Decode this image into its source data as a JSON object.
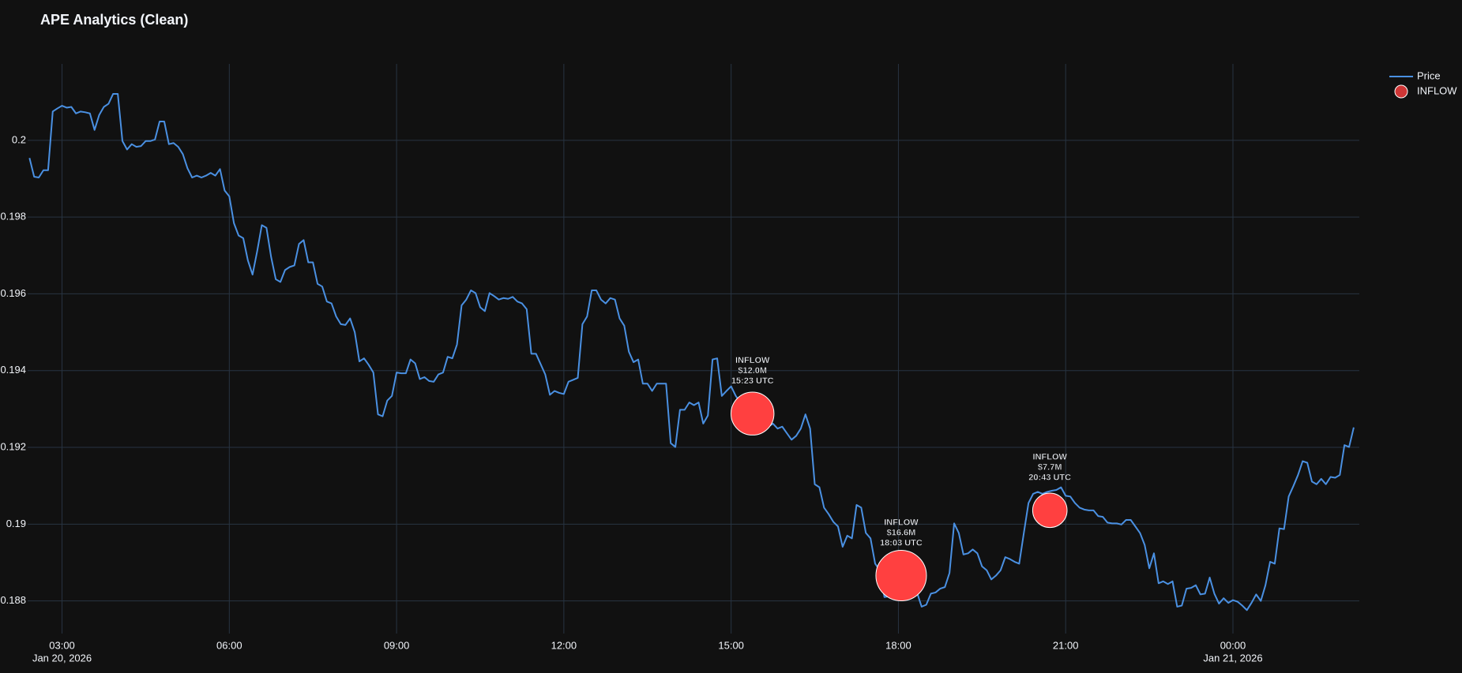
{
  "chart_data": {
    "type": "line",
    "title": "APE Analytics (Clean)",
    "xlim": [
      "2026-01-20 02:23",
      "2026-01-21 02:16"
    ],
    "ylim": [
      0.18715,
      0.20199
    ],
    "xticks": [
      {
        "value": "2026-01-20 03:00",
        "label": "03:00",
        "date_label": "Jan 20, 2026"
      },
      {
        "value": "2026-01-20 06:00",
        "label": "06:00"
      },
      {
        "value": "2026-01-20 09:00",
        "label": "09:00"
      },
      {
        "value": "2026-01-20 12:00",
        "label": "12:00"
      },
      {
        "value": "2026-01-20 15:00",
        "label": "15:00"
      },
      {
        "value": "2026-01-20 18:00",
        "label": "18:00"
      },
      {
        "value": "2026-01-20 21:00",
        "label": "21:00"
      },
      {
        "value": "2026-01-21 00:00",
        "label": "00:00",
        "date_label": "Jan 21, 2026"
      }
    ],
    "yticks": [
      0.188,
      0.19,
      0.192,
      0.194,
      0.196,
      0.198,
      0.2
    ],
    "grid": true,
    "legend": "top-right",
    "series": [
      {
        "name": "Price",
        "type": "line",
        "color": "#4a90e2",
        "x": [
          "2026-01-20 02:25",
          "2026-01-20 02:30",
          "2026-01-20 02:35",
          "2026-01-20 02:40",
          "2026-01-20 02:45",
          "2026-01-20 02:50",
          "2026-01-20 02:55",
          "2026-01-20 03:00",
          "2026-01-20 03:05",
          "2026-01-20 03:10",
          "2026-01-20 03:15",
          "2026-01-20 03:20",
          "2026-01-20 03:25",
          "2026-01-20 03:30",
          "2026-01-20 03:35",
          "2026-01-20 03:40",
          "2026-01-20 03:45",
          "2026-01-20 03:50",
          "2026-01-20 03:55",
          "2026-01-20 04:00",
          "2026-01-20 04:05",
          "2026-01-20 04:10",
          "2026-01-20 04:15",
          "2026-01-20 04:20",
          "2026-01-20 04:25",
          "2026-01-20 04:30",
          "2026-01-20 04:35",
          "2026-01-20 04:40",
          "2026-01-20 04:45",
          "2026-01-20 04:50",
          "2026-01-20 04:55",
          "2026-01-20 05:00",
          "2026-01-20 05:05",
          "2026-01-20 05:10",
          "2026-01-20 05:15",
          "2026-01-20 05:20",
          "2026-01-20 05:25",
          "2026-01-20 05:30",
          "2026-01-20 05:35",
          "2026-01-20 05:40",
          "2026-01-20 05:45",
          "2026-01-20 05:50",
          "2026-01-20 05:55",
          "2026-01-20 06:00",
          "2026-01-20 06:05",
          "2026-01-20 06:10",
          "2026-01-20 06:15",
          "2026-01-20 06:20",
          "2026-01-20 06:25",
          "2026-01-20 06:30",
          "2026-01-20 06:35",
          "2026-01-20 06:40",
          "2026-01-20 06:45",
          "2026-01-20 06:50",
          "2026-01-20 06:55",
          "2026-01-20 07:00",
          "2026-01-20 07:05",
          "2026-01-20 07:10",
          "2026-01-20 07:15",
          "2026-01-20 07:20",
          "2026-01-20 07:25",
          "2026-01-20 07:30",
          "2026-01-20 07:35",
          "2026-01-20 07:40",
          "2026-01-20 07:45",
          "2026-01-20 07:50",
          "2026-01-20 07:55",
          "2026-01-20 08:00",
          "2026-01-20 08:05",
          "2026-01-20 08:10",
          "2026-01-20 08:15",
          "2026-01-20 08:20",
          "2026-01-20 08:25",
          "2026-01-20 08:30",
          "2026-01-20 08:35",
          "2026-01-20 08:40",
          "2026-01-20 08:45",
          "2026-01-20 08:50",
          "2026-01-20 08:55",
          "2026-01-20 09:00",
          "2026-01-20 09:05",
          "2026-01-20 09:10",
          "2026-01-20 09:15",
          "2026-01-20 09:20",
          "2026-01-20 09:25",
          "2026-01-20 09:30",
          "2026-01-20 09:35",
          "2026-01-20 09:40",
          "2026-01-20 09:45",
          "2026-01-20 09:50",
          "2026-01-20 09:55",
          "2026-01-20 10:00",
          "2026-01-20 10:05",
          "2026-01-20 10:10",
          "2026-01-20 10:15",
          "2026-01-20 10:20",
          "2026-01-20 10:25",
          "2026-01-20 10:30",
          "2026-01-20 10:35",
          "2026-01-20 10:40",
          "2026-01-20 10:45",
          "2026-01-20 10:50",
          "2026-01-20 10:55",
          "2026-01-20 11:00",
          "2026-01-20 11:05",
          "2026-01-20 11:10",
          "2026-01-20 11:15",
          "2026-01-20 11:20",
          "2026-01-20 11:25",
          "2026-01-20 11:30",
          "2026-01-20 11:35",
          "2026-01-20 11:40",
          "2026-01-20 11:45",
          "2026-01-20 11:50",
          "2026-01-20 11:55",
          "2026-01-20 12:00",
          "2026-01-20 12:05",
          "2026-01-20 12:10",
          "2026-01-20 12:15",
          "2026-01-20 12:20",
          "2026-01-20 12:25",
          "2026-01-20 12:30",
          "2026-01-20 12:35",
          "2026-01-20 12:40",
          "2026-01-20 12:45",
          "2026-01-20 12:50",
          "2026-01-20 12:55",
          "2026-01-20 13:00",
          "2026-01-20 13:05",
          "2026-01-20 13:10",
          "2026-01-20 13:15",
          "2026-01-20 13:20",
          "2026-01-20 13:25",
          "2026-01-20 13:30",
          "2026-01-20 13:35",
          "2026-01-20 13:40",
          "2026-01-20 13:45",
          "2026-01-20 13:50",
          "2026-01-20 13:55",
          "2026-01-20 14:00",
          "2026-01-20 14:05",
          "2026-01-20 14:10",
          "2026-01-20 14:15",
          "2026-01-20 14:20",
          "2026-01-20 14:25",
          "2026-01-20 14:30",
          "2026-01-20 14:35",
          "2026-01-20 14:40",
          "2026-01-20 14:45",
          "2026-01-20 14:50",
          "2026-01-20 14:55",
          "2026-01-20 15:00",
          "2026-01-20 15:05",
          "2026-01-20 15:10",
          "2026-01-20 15:15",
          "2026-01-20 15:20",
          "2026-01-20 15:25",
          "2026-01-20 15:30",
          "2026-01-20 15:35",
          "2026-01-20 15:40",
          "2026-01-20 15:45",
          "2026-01-20 15:50",
          "2026-01-20 15:55",
          "2026-01-20 16:00",
          "2026-01-20 16:05",
          "2026-01-20 16:10",
          "2026-01-20 16:15",
          "2026-01-20 16:20",
          "2026-01-20 16:25",
          "2026-01-20 16:30",
          "2026-01-20 16:35",
          "2026-01-20 16:40",
          "2026-01-20 16:45",
          "2026-01-20 16:50",
          "2026-01-20 16:55",
          "2026-01-20 17:00",
          "2026-01-20 17:05",
          "2026-01-20 17:10",
          "2026-01-20 17:15",
          "2026-01-20 17:20",
          "2026-01-20 17:25",
          "2026-01-20 17:30",
          "2026-01-20 17:35",
          "2026-01-20 17:40",
          "2026-01-20 17:45",
          "2026-01-20 17:50",
          "2026-01-20 17:55",
          "2026-01-20 18:00",
          "2026-01-20 18:05",
          "2026-01-20 18:10",
          "2026-01-20 18:15",
          "2026-01-20 18:20",
          "2026-01-20 18:25",
          "2026-01-20 18:30",
          "2026-01-20 18:35",
          "2026-01-20 18:40",
          "2026-01-20 18:45",
          "2026-01-20 18:50",
          "2026-01-20 18:55",
          "2026-01-20 19:00",
          "2026-01-20 19:05",
          "2026-01-20 19:10",
          "2026-01-20 19:15",
          "2026-01-20 19:20",
          "2026-01-20 19:25",
          "2026-01-20 19:30",
          "2026-01-20 19:35",
          "2026-01-20 19:40",
          "2026-01-20 19:45",
          "2026-01-20 19:50",
          "2026-01-20 19:55",
          "2026-01-20 20:00",
          "2026-01-20 20:05",
          "2026-01-20 20:10",
          "2026-01-20 20:15",
          "2026-01-20 20:20",
          "2026-01-20 20:25",
          "2026-01-20 20:30",
          "2026-01-20 20:35",
          "2026-01-20 20:40",
          "2026-01-20 20:45",
          "2026-01-20 20:50",
          "2026-01-20 20:55",
          "2026-01-20 21:00",
          "2026-01-20 21:05",
          "2026-01-20 21:10",
          "2026-01-20 21:15",
          "2026-01-20 21:20",
          "2026-01-20 21:25",
          "2026-01-20 21:30",
          "2026-01-20 21:35",
          "2026-01-20 21:40",
          "2026-01-20 21:45",
          "2026-01-20 21:50",
          "2026-01-20 21:55",
          "2026-01-20 22:00",
          "2026-01-20 22:05",
          "2026-01-20 22:10",
          "2026-01-20 22:15",
          "2026-01-20 22:20",
          "2026-01-20 22:25",
          "2026-01-20 22:30",
          "2026-01-20 22:35",
          "2026-01-20 22:40",
          "2026-01-20 22:45",
          "2026-01-20 22:50",
          "2026-01-20 22:55",
          "2026-01-20 23:00",
          "2026-01-20 23:05",
          "2026-01-20 23:10",
          "2026-01-20 23:15",
          "2026-01-20 23:20",
          "2026-01-20 23:25",
          "2026-01-20 23:30",
          "2026-01-20 23:35",
          "2026-01-20 23:40",
          "2026-01-20 23:45",
          "2026-01-20 23:50",
          "2026-01-20 23:55",
          "2026-01-21 00:00",
          "2026-01-21 00:05",
          "2026-01-21 00:10",
          "2026-01-21 00:15",
          "2026-01-21 00:20",
          "2026-01-21 00:25",
          "2026-01-21 00:30",
          "2026-01-21 00:35",
          "2026-01-21 00:40",
          "2026-01-21 00:45",
          "2026-01-21 00:50",
          "2026-01-21 00:55",
          "2026-01-21 01:00",
          "2026-01-21 01:05",
          "2026-01-21 01:10",
          "2026-01-21 01:15",
          "2026-01-21 01:20",
          "2026-01-21 01:25",
          "2026-01-21 01:30",
          "2026-01-21 01:35",
          "2026-01-21 01:40",
          "2026-01-21 01:45",
          "2026-01-21 01:50",
          "2026-01-21 01:55",
          "2026-01-21 02:00",
          "2026-01-21 02:05",
          "2026-01-21 02:10"
        ],
        "values": [
          0.19954,
          0.19905,
          0.19903,
          0.19922,
          0.19922,
          0.20075,
          0.20083,
          0.2009,
          0.20085,
          0.20087,
          0.2007,
          0.20075,
          0.20073,
          0.2007,
          0.20027,
          0.20066,
          0.20087,
          0.20095,
          0.20121,
          0.20121,
          0.19998,
          0.19976,
          0.1999,
          0.19983,
          0.19985,
          0.19998,
          0.19998,
          0.20002,
          0.20049,
          0.20049,
          0.1999,
          0.19993,
          0.19983,
          0.19964,
          0.19927,
          0.19903,
          0.19908,
          0.19903,
          0.19908,
          0.19915,
          0.19908,
          0.19925,
          0.19869,
          0.19854,
          0.19784,
          0.19752,
          0.19745,
          0.19687,
          0.1965,
          0.19711,
          0.19779,
          0.19772,
          0.19696,
          0.19638,
          0.19631,
          0.19662,
          0.1967,
          0.19674,
          0.1973,
          0.1974,
          0.19682,
          0.19682,
          0.19626,
          0.19619,
          0.1958,
          0.19575,
          0.19541,
          0.19521,
          0.19519,
          0.19536,
          0.195,
          0.19424,
          0.19432,
          0.19415,
          0.19395,
          0.19286,
          0.19281,
          0.19322,
          0.19334,
          0.19395,
          0.19393,
          0.19393,
          0.19429,
          0.19419,
          0.19378,
          0.19383,
          0.19373,
          0.19371,
          0.1939,
          0.19395,
          0.19436,
          0.19432,
          0.19468,
          0.1957,
          0.19585,
          0.19609,
          0.19602,
          0.19565,
          0.19555,
          0.19602,
          0.19594,
          0.19585,
          0.19589,
          0.19587,
          0.19592,
          0.1958,
          0.19575,
          0.1956,
          0.19444,
          0.19444,
          0.19417,
          0.1939,
          0.19337,
          0.19347,
          0.19342,
          0.19339,
          0.19371,
          0.19376,
          0.19381,
          0.19521,
          0.19541,
          0.19609,
          0.19609,
          0.19585,
          0.19575,
          0.19589,
          0.19585,
          0.19536,
          0.19517,
          0.19449,
          0.19422,
          0.19429,
          0.19366,
          0.19366,
          0.19347,
          0.19366,
          0.19366,
          0.19366,
          0.19211,
          0.19201,
          0.19298,
          0.19298,
          0.19317,
          0.1931,
          0.19317,
          0.19262,
          0.19283,
          0.19429,
          0.19432,
          0.19334,
          0.19347,
          0.19359,
          0.19334,
          0.19317,
          0.19303,
          0.19293,
          0.19279,
          0.19269,
          0.19262,
          0.19254,
          0.19262,
          0.19249,
          0.19254,
          0.19237,
          0.1922,
          0.1923,
          0.19249,
          0.19286,
          0.19249,
          0.19104,
          0.19096,
          0.19043,
          0.19026,
          0.19006,
          0.18994,
          0.18941,
          0.1897,
          0.18963,
          0.1905,
          0.19043,
          0.18977,
          0.18963,
          0.18897,
          0.1888,
          0.1881,
          0.18812,
          0.18822,
          0.18836,
          0.18832,
          0.18836,
          0.18827,
          0.18822,
          0.18785,
          0.1879,
          0.18819,
          0.18822,
          0.18832,
          0.18836,
          0.18873,
          0.19002,
          0.18977,
          0.18921,
          0.18924,
          0.18934,
          0.18924,
          0.1889,
          0.1888,
          0.18856,
          0.18866,
          0.1888,
          0.18914,
          0.18909,
          0.18902,
          0.18897,
          0.18977,
          0.19055,
          0.19079,
          0.19084,
          0.19079,
          0.19084,
          0.19087,
          0.19089,
          0.19096,
          0.19074,
          0.19072,
          0.19055,
          0.19043,
          0.19038,
          0.19036,
          0.19036,
          0.19021,
          0.19019,
          0.19004,
          0.19002,
          0.19002,
          0.18999,
          0.19011,
          0.19011,
          0.18994,
          0.18977,
          0.18946,
          0.18885,
          0.18924,
          0.18846,
          0.18851,
          0.18844,
          0.18851,
          0.18785,
          0.18788,
          0.18832,
          0.18834,
          0.18841,
          0.18817,
          0.18819,
          0.18861,
          0.18819,
          0.18793,
          0.18807,
          0.18795,
          0.18802,
          0.18798,
          0.18788,
          0.18776,
          0.18795,
          0.18817,
          0.188,
          0.18841,
          0.18902,
          0.18897,
          0.18989,
          0.18987,
          0.19072,
          0.19099,
          0.19128,
          0.19164,
          0.1916,
          0.19111,
          0.19104,
          0.19118,
          0.19104,
          0.19123,
          0.19121,
          0.19128,
          0.19206,
          0.19201,
          0.19252
        ]
      },
      {
        "name": "INFLOW",
        "type": "scatter",
        "color": "#ff4040",
        "x": [
          "2026-01-20 15:23",
          "2026-01-20 18:03",
          "2026-01-20 20:43"
        ],
        "values": [
          0.19288,
          0.18866,
          0.19036
        ],
        "sizes": [
          12000000,
          16600000,
          7700000
        ],
        "size_labels": [
          "$12.0M",
          "$16.6M",
          "$7.7M"
        ],
        "time_labels": [
          "15:23 UTC",
          "18:03 UTC",
          "20:43 UTC"
        ]
      }
    ]
  }
}
